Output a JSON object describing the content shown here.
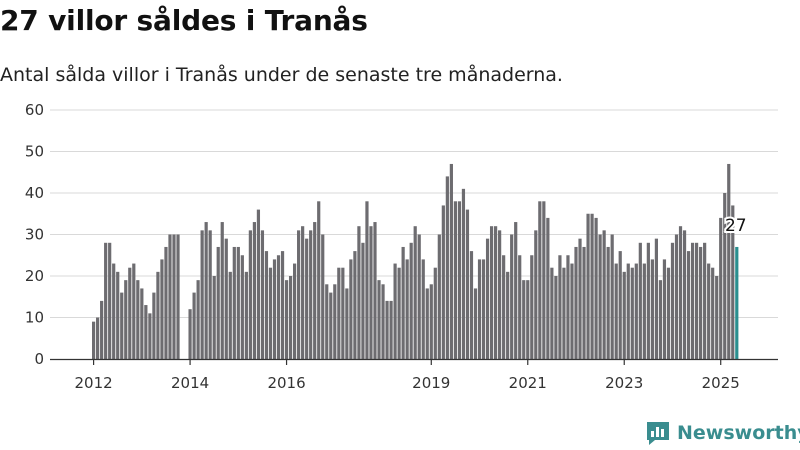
{
  "title": "27 villor såldes i Tranås",
  "subtitle": "Antal sålda villor i Tranås under de senaste tre månaderna.",
  "brand": "Newsworthy",
  "colors": {
    "bar": "#6d6c70",
    "highlight": "#2a8f8f",
    "grid": "#d9d9d9",
    "axis": "#333333"
  },
  "chart_data": {
    "type": "bar",
    "ylim": [
      0,
      60
    ],
    "yticks": [
      0,
      10,
      20,
      30,
      40,
      50,
      60
    ],
    "xticks": [
      {
        "label": "2012",
        "index": 0
      },
      {
        "label": "2014",
        "index": 24
      },
      {
        "label": "2016",
        "index": 48
      },
      {
        "label": "2019",
        "index": 84
      },
      {
        "label": "2021",
        "index": 108
      },
      {
        "label": "2023",
        "index": 132
      },
      {
        "label": "2025",
        "index": 156
      }
    ],
    "start": "2012-01",
    "highlight_label": "27",
    "values": [
      9,
      10,
      14,
      28,
      28,
      23,
      21,
      16,
      19,
      22,
      23,
      19,
      17,
      13,
      11,
      16,
      21,
      24,
      27,
      30,
      30,
      30,
      0,
      0,
      12,
      16,
      19,
      31,
      33,
      31,
      20,
      27,
      33,
      29,
      21,
      27,
      27,
      25,
      21,
      31,
      33,
      36,
      31,
      26,
      22,
      24,
      25,
      26,
      19,
      20,
      23,
      31,
      32,
      29,
      31,
      33,
      38,
      30,
      18,
      16,
      18,
      22,
      22,
      17,
      24,
      26,
      32,
      28,
      38,
      32,
      33,
      19,
      18,
      14,
      14,
      23,
      22,
      27,
      24,
      28,
      32,
      30,
      24,
      17,
      18,
      22,
      30,
      37,
      44,
      47,
      38,
      38,
      41,
      36,
      26,
      17,
      24,
      24,
      29,
      32,
      32,
      31,
      25,
      21,
      30,
      33,
      25,
      19,
      19,
      25,
      31,
      38,
      38,
      34,
      22,
      20,
      25,
      22,
      25,
      23,
      27,
      29,
      27,
      35,
      35,
      34,
      30,
      31,
      27,
      30,
      23,
      26,
      21,
      23,
      22,
      23,
      28,
      23,
      28,
      24,
      29,
      19,
      24,
      22,
      28,
      30,
      32,
      31,
      26,
      28,
      28,
      27,
      28,
      23,
      22,
      20,
      34,
      40,
      47,
      37,
      27
    ]
  }
}
